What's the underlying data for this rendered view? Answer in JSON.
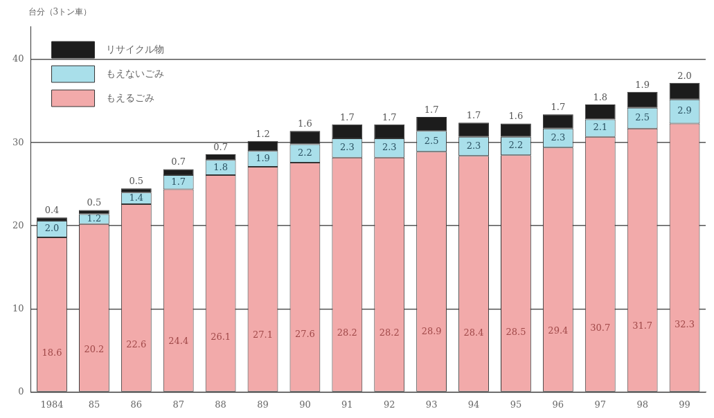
{
  "chart_data": {
    "type": "bar",
    "stacked": true,
    "ylabel": "台分（3トン車）",
    "categories": [
      "1984",
      "85",
      "86",
      "87",
      "88",
      "89",
      "90",
      "91",
      "92",
      "93",
      "94",
      "95",
      "96",
      "97",
      "98",
      "99"
    ],
    "series": [
      {
        "name": "もえるごみ",
        "color": "#f2aaaa",
        "values": [
          18.6,
          20.2,
          22.6,
          24.4,
          26.1,
          27.1,
          27.6,
          28.2,
          28.2,
          28.9,
          28.4,
          28.5,
          29.4,
          30.7,
          31.7,
          32.3
        ],
        "value_labels": [
          "18.6",
          "20.2",
          "22.6",
          "24.4",
          "26.1",
          "27.1",
          "27.6",
          "28.2",
          "28.2",
          "28.9",
          "28.4",
          "28.5",
          "29.4",
          "30.7",
          "31.7",
          "32.3"
        ]
      },
      {
        "name": "もえないごみ",
        "color": "#a9dfea",
        "values": [
          2.0,
          1.2,
          1.4,
          1.7,
          1.8,
          1.9,
          2.2,
          2.3,
          2.3,
          2.5,
          2.3,
          2.2,
          2.3,
          2.1,
          2.5,
          2.9
        ],
        "value_labels": [
          "2.0",
          "1.2",
          "1.4",
          "1.7",
          "1.8",
          "1.9",
          "2.2",
          "2.3",
          "2.3",
          "2.5",
          "2.3",
          "2.2",
          "2.3",
          "2.1",
          "2.5",
          "2.9"
        ]
      },
      {
        "name": "リサイクル物",
        "color": "#1c1c1c",
        "values": [
          0.4,
          0.5,
          0.5,
          0.7,
          0.7,
          1.2,
          1.6,
          1.7,
          1.7,
          1.7,
          1.7,
          1.6,
          1.7,
          1.8,
          1.9,
          2.0
        ],
        "value_labels": [
          "0.4",
          "0.5",
          "0.5",
          "0.7",
          "0.7",
          "1.2",
          "1.6",
          "1.7",
          "1.7",
          "1.7",
          "1.7",
          "1.6",
          "1.7",
          "1.8",
          "1.9",
          "2.0"
        ]
      }
    ],
    "ylim": [
      0,
      44
    ],
    "yticks": [
      0,
      10,
      20,
      30,
      40
    ],
    "grid": "y",
    "legend": "top left"
  }
}
